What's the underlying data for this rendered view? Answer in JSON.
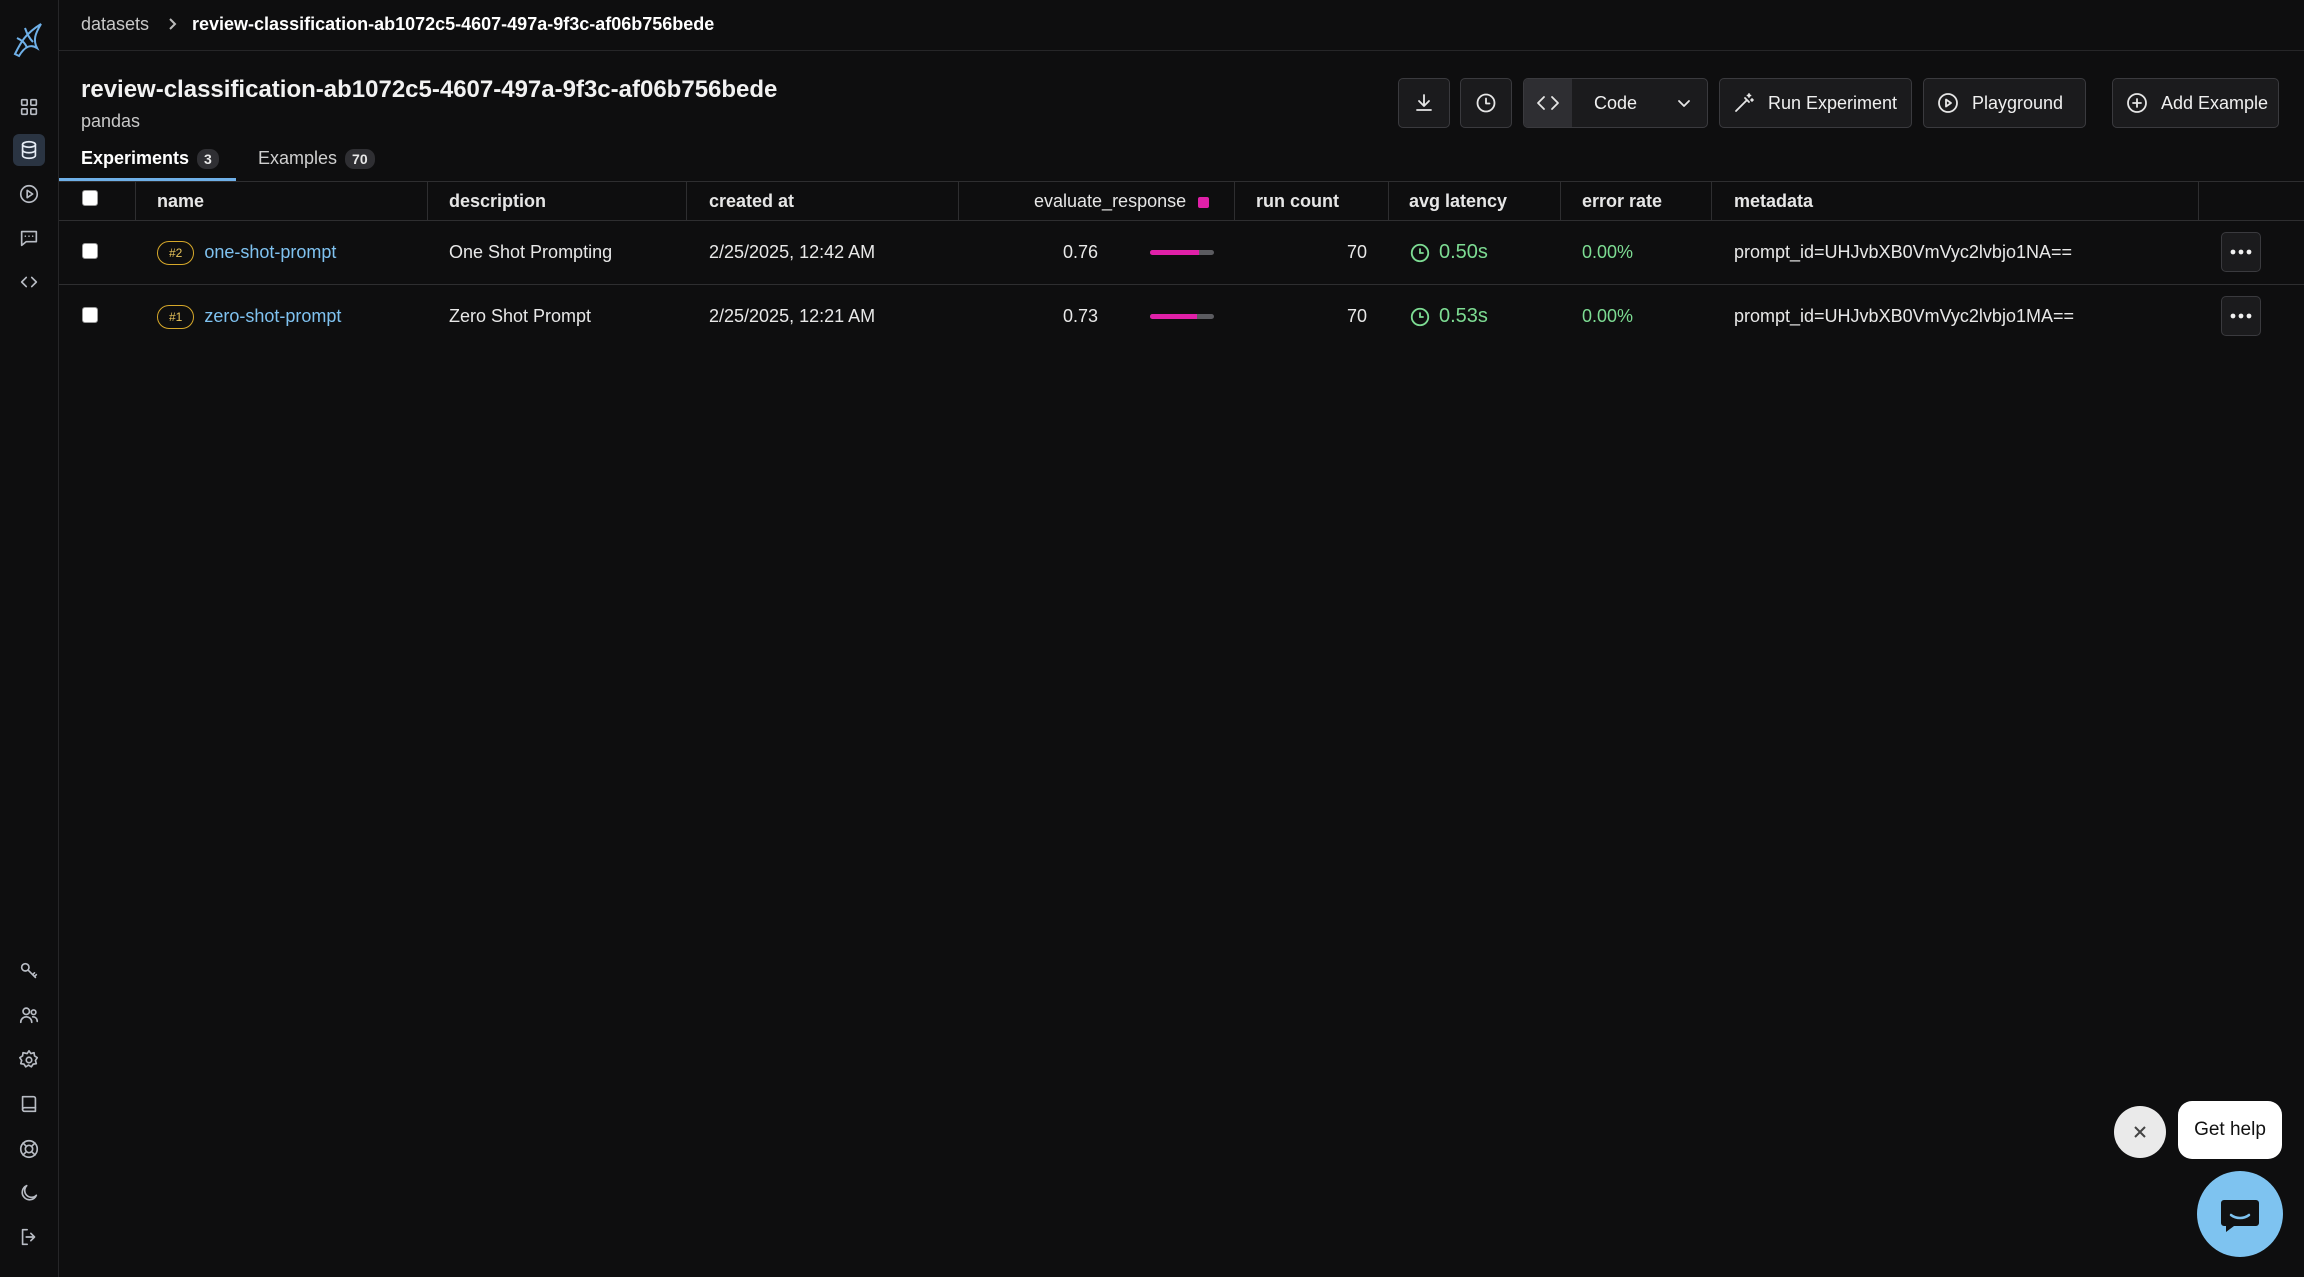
{
  "breadcrumb": {
    "root": "datasets",
    "current": "review-classification-ab1072c5-4607-497a-9f3c-af06b756bede"
  },
  "header": {
    "title": "review-classification-ab1072c5-4607-497a-9f3c-af06b756bede",
    "subtitle": "pandas"
  },
  "toolbar": {
    "download_icon": "download-icon",
    "history_icon": "clock-icon",
    "code_label": "Code",
    "run_experiment_label": "Run Experiment",
    "playground_label": "Playground",
    "add_example_label": "Add Example"
  },
  "tabs": [
    {
      "label": "Experiments",
      "count": "3",
      "active": true
    },
    {
      "label": "Examples",
      "count": "70",
      "active": false
    }
  ],
  "table": {
    "columns": {
      "name": "name",
      "description": "description",
      "created_at": "created at",
      "evaluate_response": "evaluate_response",
      "run_count": "run count",
      "avg_latency": "avg latency",
      "error_rate": "error rate",
      "metadata": "metadata"
    },
    "score_color": "#e020a8",
    "rows": [
      {
        "badge": "#2",
        "name": "one-shot-prompt",
        "description": "One Shot Prompting",
        "created_at": "2/25/2025, 12:42 AM",
        "score": "0.76",
        "score_value": 0.76,
        "run_count": "70",
        "avg_latency": "0.50s",
        "error_rate": "0.00%",
        "metadata": "prompt_id=UHJvbXB0VmVyc2lvbjo1NA=="
      },
      {
        "badge": "#1",
        "name": "zero-shot-prompt",
        "description": "Zero Shot Prompt",
        "created_at": "2/25/2025, 12:21 AM",
        "score": "0.73",
        "score_value": 0.73,
        "run_count": "70",
        "avg_latency": "0.53s",
        "error_rate": "0.00%",
        "metadata": "prompt_id=UHJvbXB0VmVyc2lvbjo1MA=="
      }
    ]
  },
  "help": {
    "label": "Get help"
  },
  "colors": {
    "accent": "#6fb0e8",
    "success": "#7ddc93",
    "badge": "#d6a82a"
  }
}
